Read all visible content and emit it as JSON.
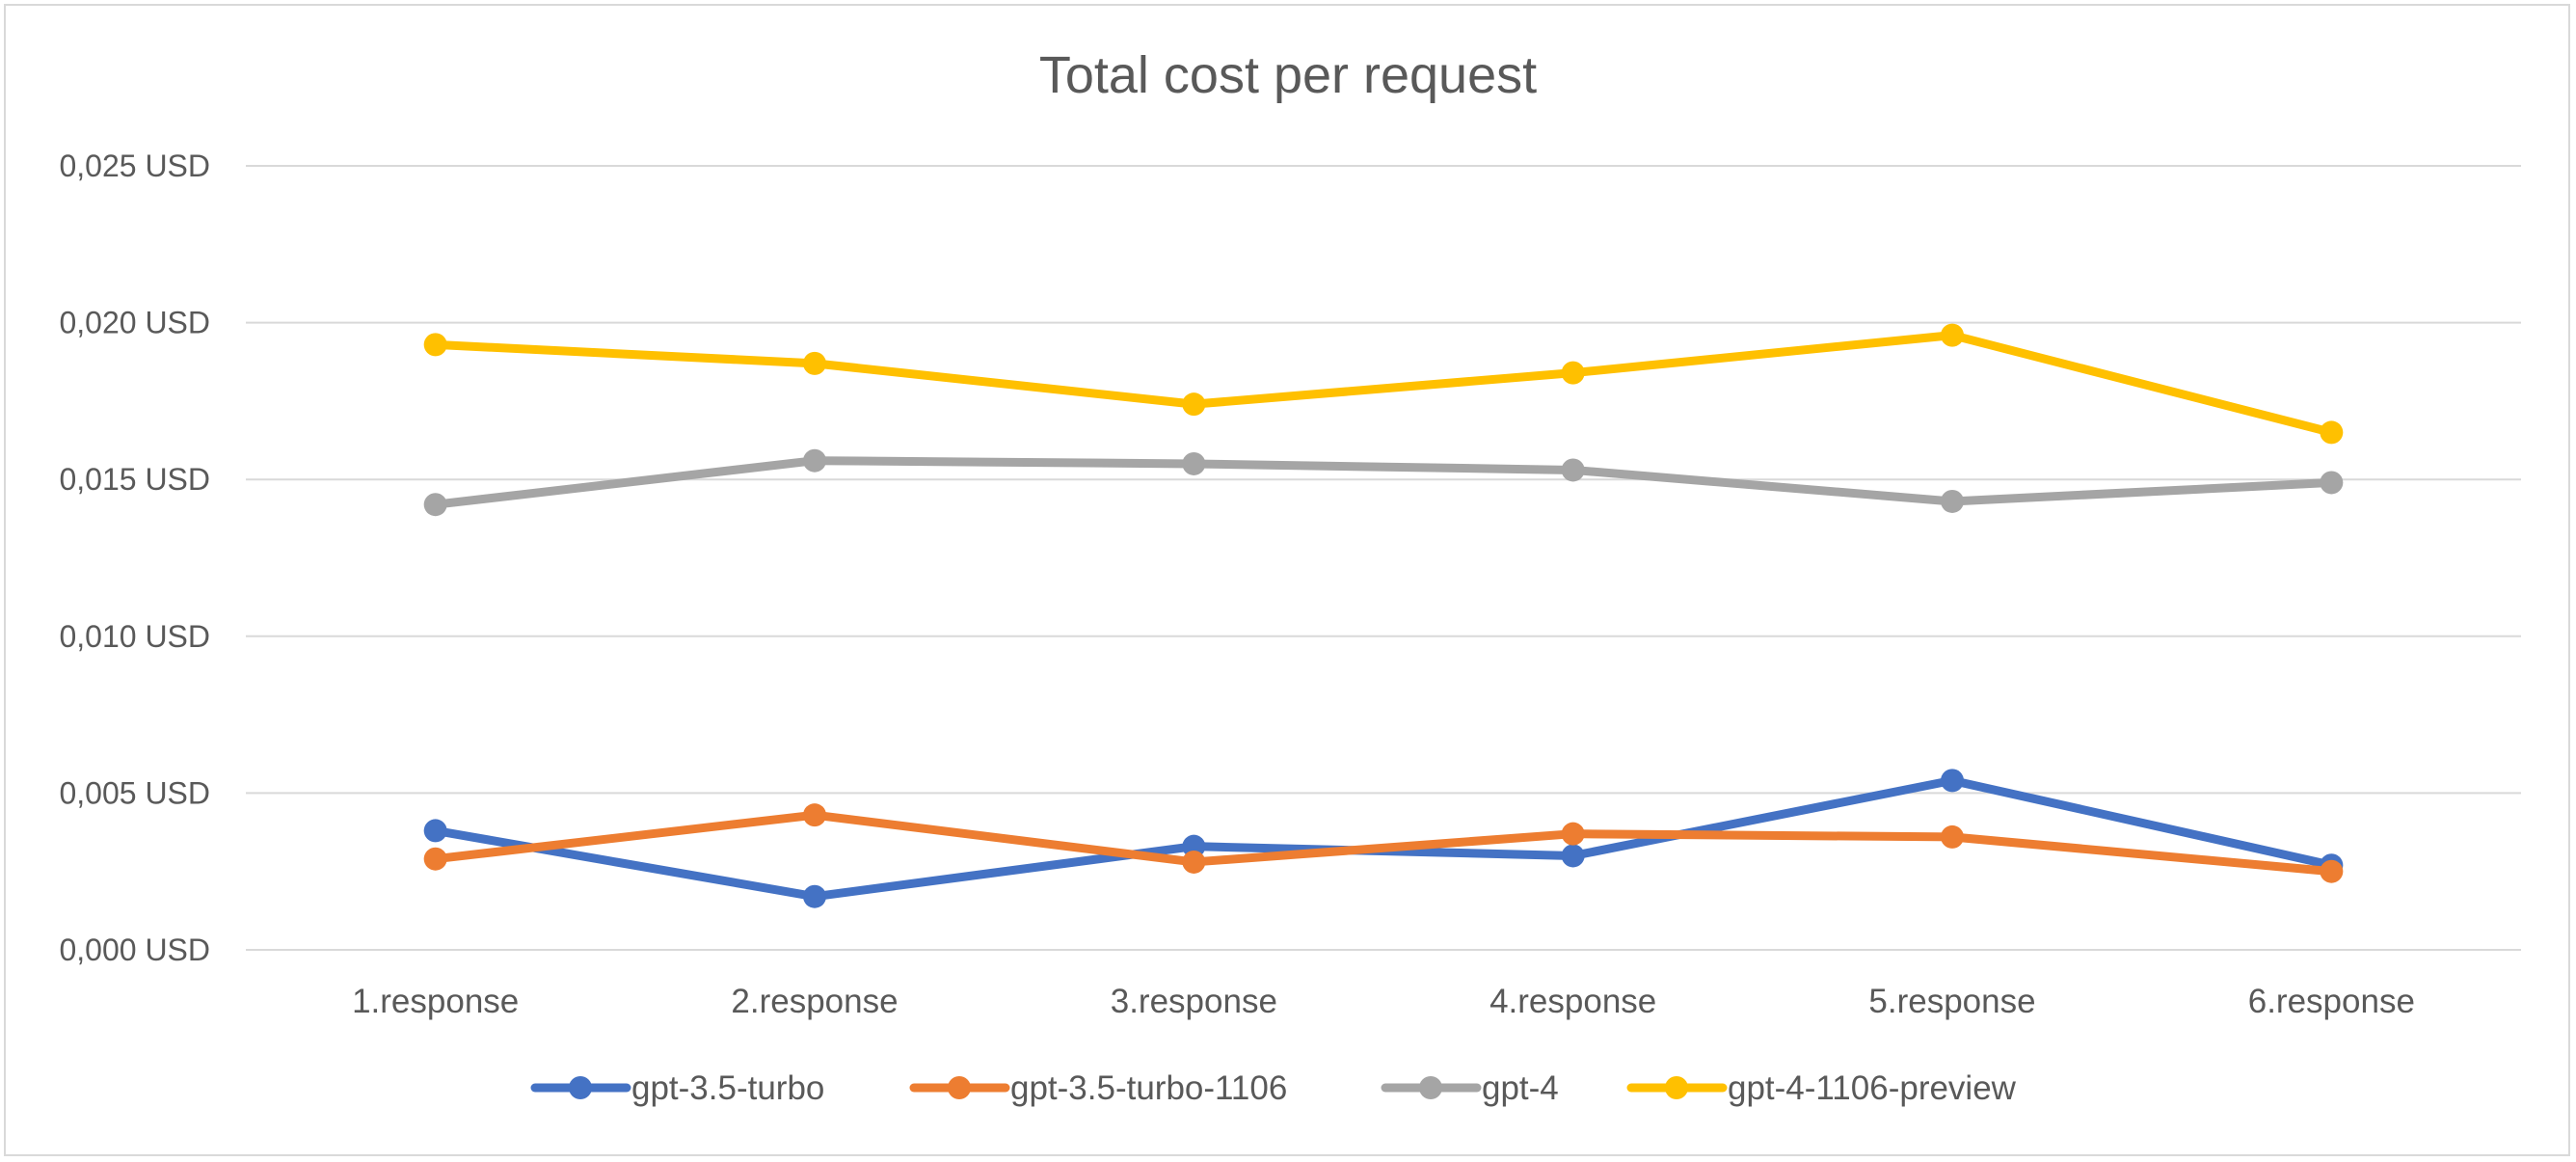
{
  "chart_data": {
    "type": "line",
    "title": "Total cost per request",
    "xlabel": "",
    "ylabel": "",
    "categories": [
      "1.response",
      "2.response",
      "3.response",
      "4.response",
      "5.response",
      "6.response"
    ],
    "y_ticks": [
      "0,000 USD",
      "0,005 USD",
      "0,010 USD",
      "0,015 USD",
      "0,020 USD",
      "0,025 USD"
    ],
    "ylim": [
      0,
      0.025
    ],
    "grid": true,
    "legend_position": "bottom",
    "series": [
      {
        "name": "gpt-3.5-turbo",
        "color": "#4472C4",
        "values": [
          0.0038,
          0.0017,
          0.0033,
          0.003,
          0.0054,
          0.0027
        ]
      },
      {
        "name": "gpt-3.5-turbo-1106",
        "color": "#ED7D31",
        "values": [
          0.0029,
          0.0043,
          0.0028,
          0.0037,
          0.0036,
          0.0025
        ]
      },
      {
        "name": "gpt-4",
        "color": "#A5A5A5",
        "values": [
          0.0142,
          0.0156,
          0.0155,
          0.0153,
          0.0143,
          0.0149
        ]
      },
      {
        "name": "gpt-4-1106-preview",
        "color": "#FFC000",
        "values": [
          0.0193,
          0.0187,
          0.0174,
          0.0184,
          0.0196,
          0.0165
        ]
      }
    ]
  }
}
